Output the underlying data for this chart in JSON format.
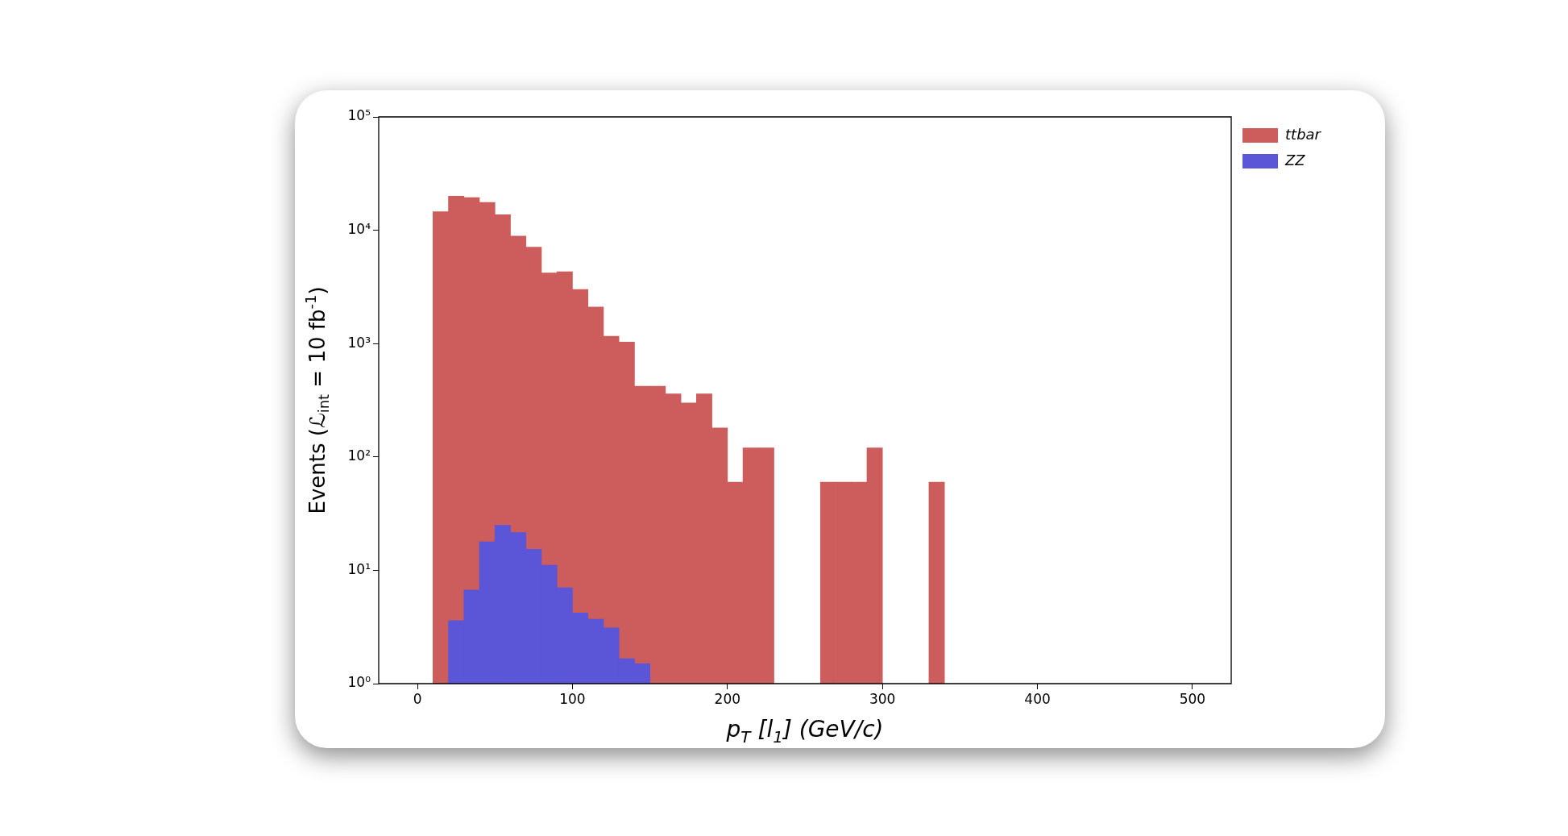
{
  "chart_data": {
    "type": "histogram",
    "xlabel": "p$_{T}$ [l$_{1}$] (GeV/c)",
    "ylabel": "Events (ℒ$_{int}$ = 10 fb$^{-1}$)",
    "bins": [
      10,
      20,
      30,
      40,
      50,
      60,
      70,
      80,
      90,
      100,
      110,
      120,
      130,
      140,
      150,
      160,
      170,
      180,
      190,
      200,
      210,
      220,
      230,
      240,
      250,
      260,
      270,
      280,
      290,
      300,
      310,
      320,
      330,
      340
    ],
    "series": [
      {
        "name": "ttbar",
        "color": "#cd5c5c",
        "values": [
          14600,
          20000,
          19400,
          17600,
          13700,
          8900,
          7100,
          4200,
          4300,
          3000,
          2100,
          1160,
          1030,
          420,
          420,
          360,
          300,
          360,
          180,
          60,
          120,
          120,
          null,
          null,
          null,
          60,
          60,
          60,
          120,
          null,
          null,
          null,
          60
        ]
      },
      {
        "name": "ZZ",
        "color": "#5b55d7",
        "values": [
          null,
          3.6,
          6.7,
          17.8,
          24.9,
          21.5,
          15.3,
          11.1,
          7.0,
          4.2,
          3.7,
          3.1,
          1.66,
          1.5,
          null,
          null,
          null,
          null,
          null,
          null,
          null,
          null,
          null,
          null,
          null,
          null,
          null,
          null,
          null,
          null,
          null,
          null,
          null
        ]
      }
    ],
    "xlim": [
      -25,
      525
    ],
    "xticks": [
      0,
      100,
      200,
      300,
      400,
      500
    ],
    "ylim": [
      1,
      100000
    ],
    "yticks": [
      {
        "value": 1,
        "label": "10⁰"
      },
      {
        "value": 10,
        "label": "10¹"
      },
      {
        "value": 100,
        "label": "10²"
      },
      {
        "value": 1000,
        "label": "10³"
      },
      {
        "value": 10000,
        "label": "10⁴"
      },
      {
        "value": 100000,
        "label": "10⁵"
      }
    ],
    "log": true,
    "legend": "top right"
  }
}
